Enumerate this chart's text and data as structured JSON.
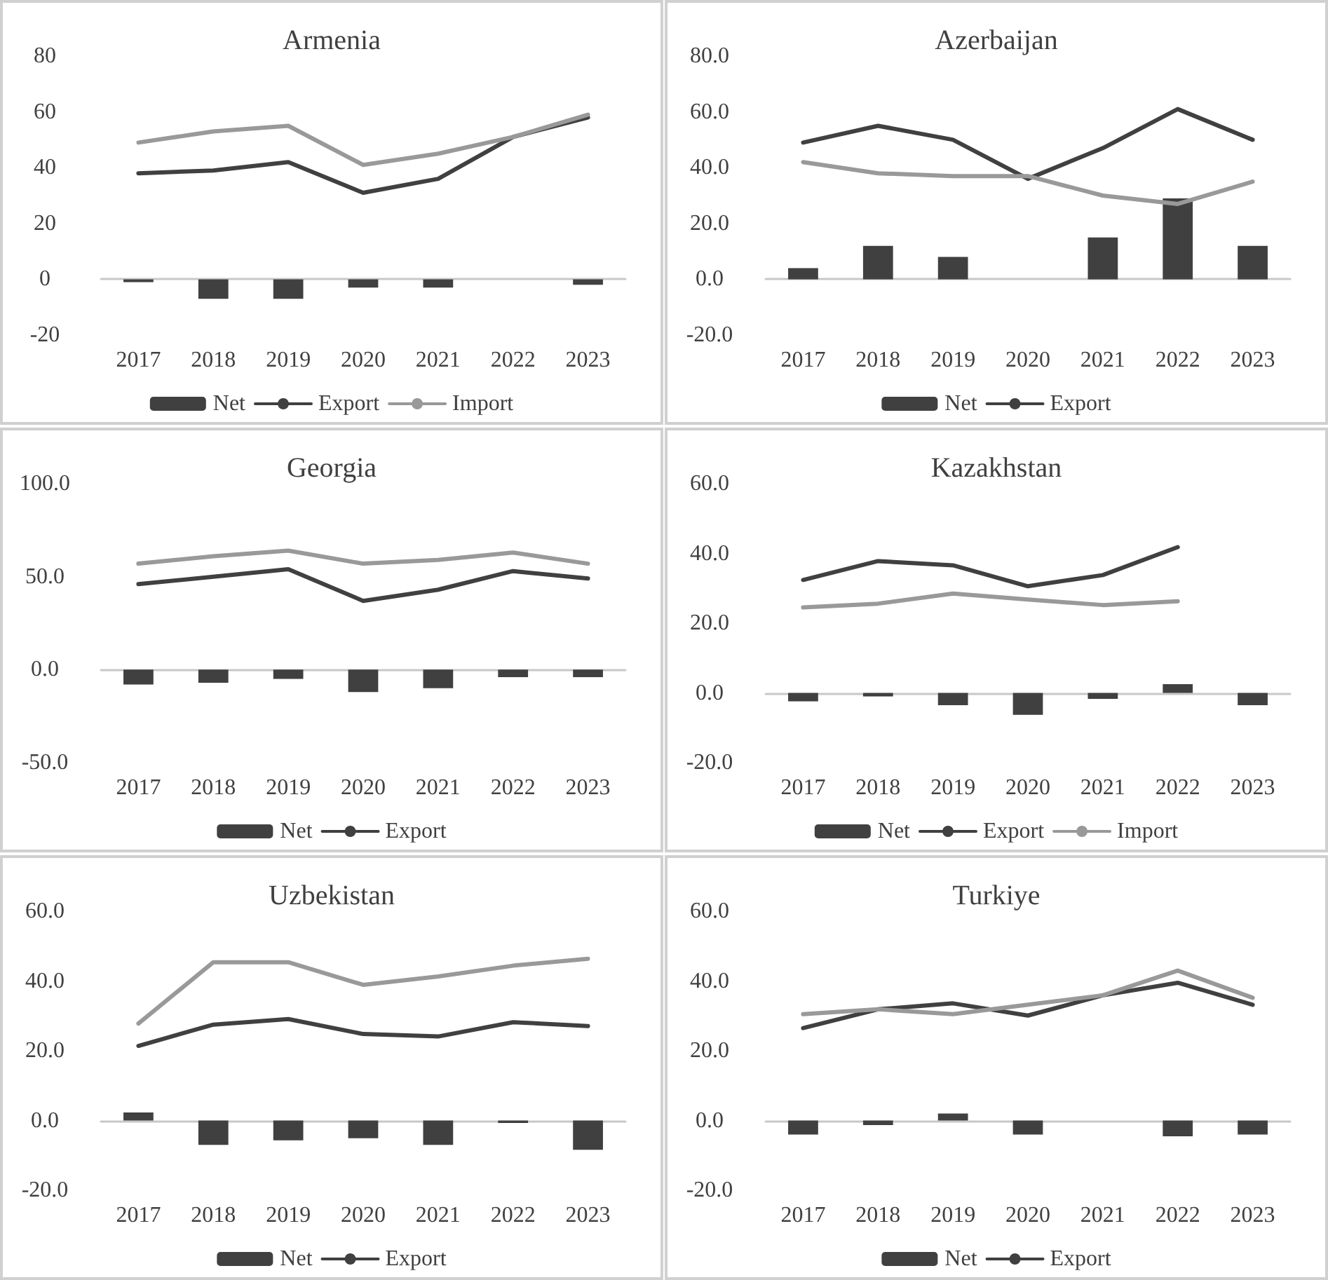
{
  "chart_data": [
    {
      "type": "line",
      "title": "Armenia",
      "categories": [
        "2017",
        "2018",
        "2019",
        "2020",
        "2021",
        "2022",
        "2023"
      ],
      "ylim": [
        -20,
        80
      ],
      "yticks": [
        -20,
        0,
        20,
        40,
        60,
        80
      ],
      "legend": "bottom",
      "marker": "none",
      "series": [
        {
          "name": "Net",
          "type": "bar",
          "color": "#404040",
          "values": [
            -1,
            -7,
            -7,
            -3,
            -3,
            null,
            -2
          ]
        },
        {
          "name": "Export",
          "color": "#404040",
          "values": [
            38,
            39,
            42,
            31,
            36,
            51,
            58
          ]
        },
        {
          "name": "Import",
          "color": "#999999",
          "values": [
            49,
            53,
            55,
            41,
            45,
            51,
            59
          ]
        }
      ]
    },
    {
      "type": "line",
      "title": "Azerbaijan",
      "categories": [
        "2017",
        "2018",
        "2019",
        "2020",
        "2021",
        "2022",
        "2023"
      ],
      "ylim": [
        -20,
        80
      ],
      "yticks": [
        {
          "value": -20,
          "label": "-20.0"
        },
        {
          "value": 0,
          "label": "0.0"
        },
        {
          "value": 20,
          "label": "20.0"
        },
        {
          "value": 40,
          "label": "40.0"
        },
        {
          "value": 60,
          "label": "60.0"
        },
        {
          "value": 80,
          "label": "80.0"
        }
      ],
      "legend": "bottom",
      "marker": "none",
      "series": [
        {
          "name": "Net",
          "type": "bar",
          "color": "#404040",
          "values": [
            4,
            12,
            8,
            null,
            15,
            29,
            12
          ]
        },
        {
          "name": "Export",
          "color": "#404040",
          "values": [
            49,
            55,
            50,
            36,
            47,
            61,
            50
          ]
        },
        {
          "color": "#999999",
          "values": [
            42,
            38,
            37,
            37,
            30,
            27,
            35
          ]
        }
      ]
    },
    {
      "type": "line",
      "title": "Georgia",
      "categories": [
        "2017",
        "2018",
        "2019",
        "2020",
        "2021",
        "2022",
        "2023"
      ],
      "ylim": [
        -50,
        100
      ],
      "yticks": [
        {
          "value": -50,
          "label": "-50.0"
        },
        {
          "value": 0,
          "label": "0.0"
        },
        {
          "value": 50,
          "label": "50.0"
        },
        {
          "value": 100,
          "label": "100.0"
        }
      ],
      "legend": "bottom",
      "marker": "none",
      "series": [
        {
          "name": "Net",
          "type": "bar",
          "color": "#404040",
          "values": [
            -8,
            -7,
            -5,
            -12,
            -10,
            -4,
            -4
          ]
        },
        {
          "name": "Export",
          "color": "#404040",
          "values": [
            46,
            50,
            54,
            37,
            43,
            53,
            49
          ]
        },
        {
          "color": "#999999",
          "values": [
            57,
            61,
            64,
            57,
            59,
            63,
            57
          ]
        }
      ]
    },
    {
      "type": "line",
      "title": "Kazakhstan",
      "categories": [
        "2017",
        "2018",
        "2019",
        "2020",
        "2021",
        "2022",
        "2023"
      ],
      "ylim": [
        -20,
        60
      ],
      "yticks": [
        {
          "value": -20,
          "label": "-20.0"
        },
        {
          "value": 0,
          "label": "0.0"
        },
        {
          "value": 20,
          "label": "20.0"
        },
        {
          "value": 40,
          "label": "40.0"
        },
        {
          "value": 60,
          "label": "60.0"
        }
      ],
      "legend": "bottom",
      "marker": "none",
      "series": [
        {
          "name": "Net",
          "type": "bar",
          "color": "#404040",
          "values": [
            -2.4,
            -1,
            -3.5,
            -6.3,
            -1.7,
            2.5,
            -3.5
          ]
        },
        {
          "name": "Export",
          "color": "#404040",
          "values": [
            32.4,
            37.8,
            36.6,
            30.6,
            33.8,
            41.8,
            null
          ]
        },
        {
          "name": "Import",
          "color": "#999999",
          "values": [
            24.5,
            25.6,
            28.5,
            26.8,
            25.2,
            26.3,
            null
          ]
        }
      ]
    },
    {
      "type": "line",
      "title": "Uzbekistan",
      "categories": [
        "2017",
        "2018",
        "2019",
        "2020",
        "2021",
        "2022",
        "2023"
      ],
      "ylim": [
        -20,
        60
      ],
      "yticks": [
        {
          "value": -20,
          "label": "-20.0"
        },
        {
          "value": 0,
          "label": "0.0"
        },
        {
          "value": 20,
          "label": "20.0"
        },
        {
          "value": 40,
          "label": "40.0"
        },
        {
          "value": 60,
          "label": "60.0"
        }
      ],
      "legend": "bottom",
      "marker": "none",
      "series": [
        {
          "name": "Net",
          "type": "bar",
          "color": "#404040",
          "values": [
            2.3,
            -7,
            -5.7,
            -5.1,
            -7,
            -0.7,
            -8.4
          ]
        },
        {
          "name": "Export",
          "color": "#404040",
          "values": [
            21.4,
            27.5,
            29.1,
            24.8,
            24.1,
            28.2,
            27.1
          ]
        },
        {
          "color": "#999999",
          "values": [
            27.8,
            45.4,
            45.4,
            38.9,
            41.3,
            44.4,
            46.4
          ]
        }
      ]
    },
    {
      "type": "line",
      "title": "Turkiye",
      "categories": [
        "2017",
        "2018",
        "2019",
        "2020",
        "2021",
        "2022",
        "2023"
      ],
      "ylim": [
        -20,
        60
      ],
      "yticks": [
        {
          "value": -20,
          "label": "-20.0"
        },
        {
          "value": 0,
          "label": "0.0"
        },
        {
          "value": 20,
          "label": "20.0"
        },
        {
          "value": 40,
          "label": "40.0"
        },
        {
          "value": 60,
          "label": "60.0"
        }
      ],
      "legend": "bottom",
      "marker": "none",
      "series": [
        {
          "name": "Net",
          "type": "bar",
          "color": "#404040",
          "values": [
            -4,
            -1.3,
            2,
            -4,
            null,
            -4.5,
            -4
          ]
        },
        {
          "name": "Export",
          "color": "#404040",
          "values": [
            26.5,
            31.9,
            33.6,
            30.1,
            35.9,
            39.5,
            33.2
          ]
        },
        {
          "color": "#999999",
          "values": [
            30.5,
            31.9,
            30.5,
            33.2,
            35.9,
            43,
            35.2
          ]
        }
      ]
    }
  ]
}
